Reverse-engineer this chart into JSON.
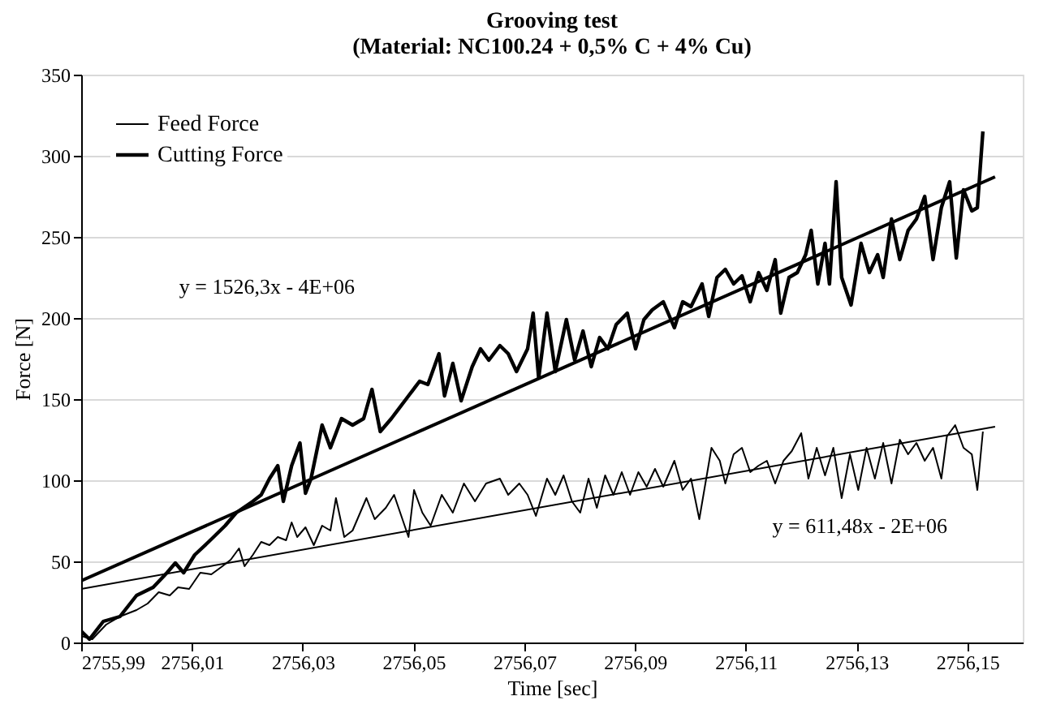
{
  "chart_data": {
    "type": "line",
    "title": "Grooving test",
    "subtitle": "(Material: NC100.24 + 0,5% C + 4% Cu)",
    "xlabel": "Time [sec]",
    "ylabel": "Force [N]",
    "xlim": [
      2755.99,
      2756.16
    ],
    "xticks": [
      {
        "value": 2755.99,
        "label": "2755,99"
      },
      {
        "value": 2756.01,
        "label": "2756,01"
      },
      {
        "value": 2756.03,
        "label": "2756,03"
      },
      {
        "value": 2756.05,
        "label": "2756,05"
      },
      {
        "value": 2756.07,
        "label": "2756,07"
      },
      {
        "value": 2756.09,
        "label": "2756,09"
      },
      {
        "value": 2756.11,
        "label": "2756,11"
      },
      {
        "value": 2756.13,
        "label": "2756,13"
      },
      {
        "value": 2756.15,
        "label": "2756,15"
      }
    ],
    "ylim": [
      0,
      350
    ],
    "yticks": [
      0,
      50,
      100,
      150,
      200,
      250,
      300,
      350
    ],
    "grid": "y",
    "legend": "top left",
    "marker": "none",
    "line_style": "solid",
    "series": [
      {
        "name": "Feed Force",
        "color": "#000000",
        "x": [
          2755.99,
          2755.992,
          2755.9945,
          2755.997,
          2756.0,
          2756.002,
          2756.004,
          2756.006,
          2756.0075,
          2756.0095,
          2756.0115,
          2756.0135,
          2756.0155,
          2756.017,
          2756.0185,
          2756.0195,
          2756.021,
          2756.0225,
          2756.024,
          2756.0255,
          2756.027,
          2756.028,
          2756.029,
          2756.0305,
          2756.032,
          2756.0335,
          2756.035,
          2756.036,
          2756.0375,
          2756.039,
          2756.0415,
          2756.043,
          2756.045,
          2756.0465,
          2756.0491,
          2756.0501,
          2756.0516,
          2756.0531,
          2756.0551,
          2756.0571,
          2756.0591,
          2756.0611,
          2756.0631,
          2756.0656,
          2756.0671,
          2756.0691,
          2756.0706,
          2756.0721,
          2756.0741,
          2756.0756,
          2756.0771,
          2756.0786,
          2756.0801,
          2756.0816,
          2756.0831,
          2756.0846,
          2756.0861,
          2756.0876,
          2756.0891,
          2756.0906,
          2756.0921,
          2756.0936,
          2756.0951,
          2756.0971,
          2756.0986,
          2756.1001,
          2756.1016,
          2756.1038,
          2756.1053,
          2756.1063,
          2756.1078,
          2756.1093,
          2756.1108,
          2756.1123,
          2756.1138,
          2756.1153,
          2756.1168,
          2756.1183,
          2756.12,
          2756.1213,
          2756.1228,
          2756.1243,
          2756.1258,
          2756.1273,
          2756.1288,
          2756.1303,
          2756.1318,
          2756.1333,
          2756.1348,
          2756.1363,
          2756.1378,
          2756.1393,
          2756.1408,
          2756.1423,
          2756.1438,
          2756.1453,
          2756.1463,
          2756.1478,
          2756.1493,
          2756.1508,
          2756.1518,
          2756.1528
        ],
        "values": [
          4,
          2,
          11,
          16,
          20,
          24,
          31,
          29,
          34,
          33,
          43,
          42,
          47,
          51,
          58,
          47,
          54,
          62,
          60,
          65,
          63,
          74,
          65,
          71,
          60,
          72,
          69,
          89,
          65,
          69,
          89,
          76,
          83,
          91,
          65,
          94,
          80,
          72,
          91,
          80,
          98,
          87,
          98,
          101,
          91,
          98,
          91,
          78,
          101,
          91,
          103,
          87,
          80,
          101,
          83,
          103,
          91,
          105,
          91,
          105,
          96,
          107,
          96,
          112,
          94,
          101,
          76,
          120,
          112,
          98,
          116,
          120,
          105,
          109,
          112,
          98,
          112,
          118,
          129,
          101,
          120,
          103,
          120,
          89,
          116,
          94,
          120,
          101,
          123,
          98,
          125,
          116,
          123,
          112,
          120,
          101,
          127,
          134,
          120,
          116,
          94,
          130
        ]
      },
      {
        "name": "Cutting Force",
        "color": "#000000",
        "x": [
          2755.99,
          2755.9915,
          2755.994,
          2755.997,
          2756.0,
          2756.003,
          2756.0055,
          2756.007,
          2756.0085,
          2756.0105,
          2756.013,
          2756.016,
          2756.018,
          2756.021,
          2756.0225,
          2756.024,
          2756.0255,
          2756.0265,
          2756.028,
          2756.0295,
          2756.0305,
          2756.0315,
          2756.0335,
          2756.035,
          2756.037,
          2756.039,
          2756.041,
          2756.0425,
          2756.044,
          2756.046,
          2756.0491,
          2756.0511,
          2756.0526,
          2756.0546,
          2756.0556,
          2756.0571,
          2756.0586,
          2756.0606,
          2756.0621,
          2756.0636,
          2756.0656,
          2756.0671,
          2756.0686,
          2756.0706,
          2756.0716,
          2756.0726,
          2756.0741,
          2756.0756,
          2756.0776,
          2756.0791,
          2756.0806,
          2756.0821,
          2756.0836,
          2756.0851,
          2756.0866,
          2756.0886,
          2756.0901,
          2756.0916,
          2756.0931,
          2756.0951,
          2756.0971,
          2756.0986,
          2756.1001,
          2756.1021,
          2756.1033,
          2756.1048,
          2756.1063,
          2756.1078,
          2756.1093,
          2756.1108,
          2756.1123,
          2756.1138,
          2756.1153,
          2756.1163,
          2756.1178,
          2756.1193,
          2756.1208,
          2756.1218,
          2756.123,
          2756.1243,
          2756.1251,
          2756.1263,
          2756.1273,
          2756.129,
          2756.1308,
          2756.1323,
          2756.1338,
          2756.1348,
          2756.1363,
          2756.1378,
          2756.1393,
          2756.1408,
          2756.1423,
          2756.1438,
          2756.1453,
          2756.1468,
          2756.148,
          2756.1493,
          2756.1508,
          2756.1518,
          2756.1528
        ],
        "values": [
          7,
          2,
          13,
          16,
          29,
          34,
          43,
          49,
          43,
          54,
          62,
          72,
          80,
          87,
          91,
          101,
          109,
          87,
          109,
          123,
          92,
          101,
          134,
          120,
          138,
          134,
          138,
          156,
          130,
          138,
          152,
          161,
          159,
          178,
          152,
          172,
          149,
          170,
          181,
          174,
          183,
          178,
          167,
          181,
          203,
          163,
          203,
          167,
          199,
          174,
          192,
          170,
          188,
          181,
          196,
          203,
          181,
          199,
          205,
          210,
          194,
          210,
          207,
          221,
          201,
          225,
          230,
          221,
          226,
          210,
          228,
          217,
          236,
          203,
          225,
          228,
          239,
          254,
          221,
          246,
          221,
          284,
          225,
          208,
          246,
          228,
          239,
          225,
          261,
          236,
          254,
          261,
          275,
          236,
          268,
          284,
          237,
          279,
          266,
          268,
          315
        ]
      },
      {
        "type": "line",
        "color": "#000000",
        "x": [
          2755.99,
          2756.155
        ],
        "values": [
          38,
          287
        ]
      },
      {
        "type": "line",
        "color": "#000000",
        "x": [
          2755.99,
          2756.155
        ],
        "values": [
          33,
          133
        ]
      }
    ],
    "annotations": [
      "y = 1526,3x - 4E+06",
      "y = 611,48x - 2E+06"
    ]
  }
}
